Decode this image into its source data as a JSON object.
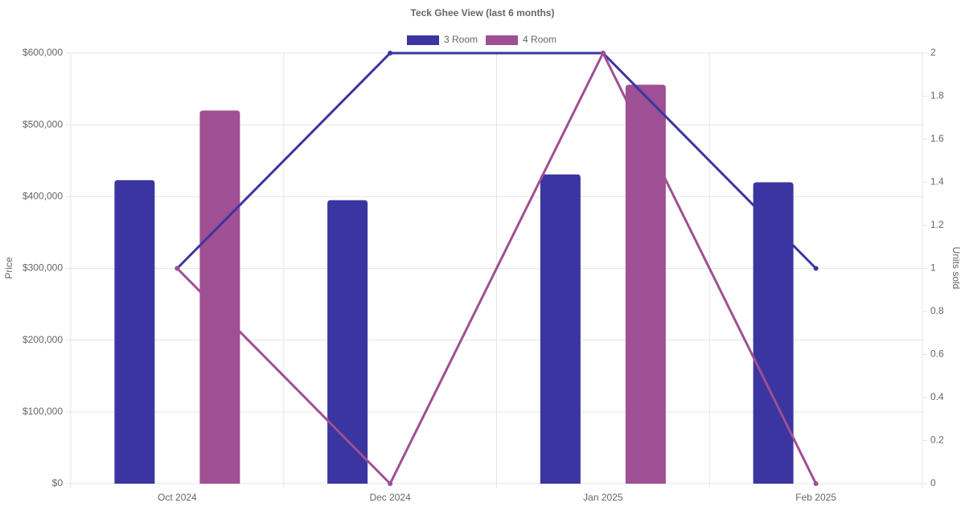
{
  "chart_data": {
    "type": "bar-line",
    "title": "Teck Ghee View (last 6 months)",
    "categories": [
      "Oct 2024",
      "Dec 2024",
      "Jan 2025",
      "Feb 2025"
    ],
    "series": [
      {
        "name": "3 Room",
        "color": "#3a35a0",
        "values": [
          423000,
          395000,
          431000,
          420000
        ],
        "units": [
          1,
          2,
          2,
          1
        ]
      },
      {
        "name": "4 Room",
        "color": "#9f4f93",
        "values": [
          520000,
          null,
          556000,
          null
        ],
        "units": [
          1,
          0,
          2,
          0
        ]
      }
    ],
    "y_label": "Price",
    "y2_label": "Units sold",
    "ylim": [
      0,
      600000
    ],
    "yticks": [
      {
        "value": 0,
        "label": "$0"
      },
      {
        "value": 100000,
        "label": "$100,000"
      },
      {
        "value": 200000,
        "label": "$200,000"
      },
      {
        "value": 300000,
        "label": "$300,000"
      },
      {
        "value": 400000,
        "label": "$400,000"
      },
      {
        "value": 500000,
        "label": "$500,000"
      },
      {
        "value": 600000,
        "label": "$600,000"
      }
    ],
    "y2lim": [
      0,
      2
    ],
    "y2ticks": [
      0,
      0.2,
      0.4,
      0.6,
      0.8,
      1,
      1.2,
      1.4,
      1.6,
      1.8,
      2
    ],
    "grid": true,
    "legend": "top"
  }
}
